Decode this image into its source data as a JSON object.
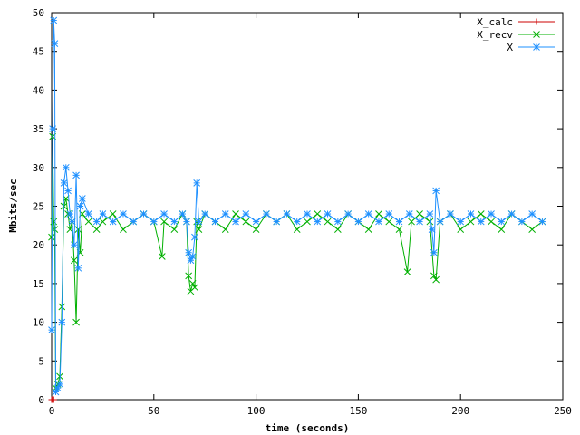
{
  "chart_data": {
    "type": "line",
    "xlabel": "time (seconds)",
    "ylabel": "Mbits/sec",
    "xlim": [
      0,
      250
    ],
    "ylim": [
      0,
      50
    ],
    "x_ticks": [
      "0",
      "50",
      "100",
      "150",
      "200",
      "250"
    ],
    "y_ticks": [
      "0",
      "5",
      "10",
      "15",
      "20",
      "25",
      "30",
      "35",
      "40",
      "45",
      "50"
    ],
    "grid": false,
    "legend_position": "top-right",
    "series": [
      {
        "name": "X_calc",
        "color": "#cc0000",
        "marker": "plus",
        "points": [
          [
            0,
            0
          ],
          [
            0.5,
            0
          ],
          [
            1,
            0
          ]
        ]
      },
      {
        "name": "X_recv",
        "color": "#00b000",
        "marker": "x",
        "points": [
          [
            0,
            21
          ],
          [
            0.5,
            34
          ],
          [
            1,
            23
          ],
          [
            1.5,
            22
          ],
          [
            2,
            1.5
          ],
          [
            3,
            2
          ],
          [
            4,
            3
          ],
          [
            5,
            12
          ],
          [
            6,
            25
          ],
          [
            7,
            26
          ],
          [
            8,
            24
          ],
          [
            9,
            22
          ],
          [
            10,
            23
          ],
          [
            11,
            18
          ],
          [
            12,
            10
          ],
          [
            13,
            22
          ],
          [
            14,
            19
          ],
          [
            15,
            24
          ],
          [
            18,
            23
          ],
          [
            22,
            22
          ],
          [
            25,
            23
          ],
          [
            30,
            24
          ],
          [
            35,
            22
          ],
          [
            40,
            23
          ],
          [
            45,
            24
          ],
          [
            50,
            23
          ],
          [
            54,
            18.5
          ],
          [
            55,
            23
          ],
          [
            60,
            22
          ],
          [
            64,
            24
          ],
          [
            66,
            23
          ],
          [
            67,
            16
          ],
          [
            68,
            14
          ],
          [
            69,
            15
          ],
          [
            70,
            14.5
          ],
          [
            71,
            23
          ],
          [
            72,
            22
          ],
          [
            75,
            24
          ],
          [
            80,
            23
          ],
          [
            85,
            22
          ],
          [
            90,
            24
          ],
          [
            95,
            23
          ],
          [
            100,
            22
          ],
          [
            105,
            24
          ],
          [
            110,
            23
          ],
          [
            115,
            24
          ],
          [
            120,
            22
          ],
          [
            125,
            23
          ],
          [
            130,
            24
          ],
          [
            135,
            23
          ],
          [
            140,
            22
          ],
          [
            145,
            24
          ],
          [
            150,
            23
          ],
          [
            155,
            22
          ],
          [
            160,
            24
          ],
          [
            165,
            23
          ],
          [
            170,
            22
          ],
          [
            174,
            16.5
          ],
          [
            176,
            23
          ],
          [
            180,
            24
          ],
          [
            185,
            23
          ],
          [
            187,
            16
          ],
          [
            188,
            15.5
          ],
          [
            190,
            23
          ],
          [
            195,
            24
          ],
          [
            200,
            22
          ],
          [
            205,
            23
          ],
          [
            210,
            24
          ],
          [
            215,
            23
          ],
          [
            220,
            22
          ],
          [
            225,
            24
          ],
          [
            230,
            23
          ],
          [
            235,
            22
          ],
          [
            240,
            23
          ]
        ]
      },
      {
        "name": "X",
        "color": "#1e90ff",
        "marker": "star",
        "points": [
          [
            0,
            9
          ],
          [
            0.5,
            35
          ],
          [
            1,
            49
          ],
          [
            1.5,
            46
          ],
          [
            2,
            1
          ],
          [
            3,
            1.5
          ],
          [
            4,
            2
          ],
          [
            5,
            10
          ],
          [
            6,
            28
          ],
          [
            7,
            30
          ],
          [
            8,
            27
          ],
          [
            9,
            24
          ],
          [
            10,
            23
          ],
          [
            11,
            20
          ],
          [
            12,
            29
          ],
          [
            13,
            17
          ],
          [
            14,
            25
          ],
          [
            15,
            26
          ],
          [
            18,
            24
          ],
          [
            22,
            23
          ],
          [
            25,
            24
          ],
          [
            30,
            23
          ],
          [
            35,
            24
          ],
          [
            40,
            23
          ],
          [
            45,
            24
          ],
          [
            50,
            23
          ],
          [
            55,
            24
          ],
          [
            60,
            23
          ],
          [
            64,
            24
          ],
          [
            66,
            23
          ],
          [
            67,
            19
          ],
          [
            68,
            18
          ],
          [
            69,
            18.5
          ],
          [
            70,
            21
          ],
          [
            71,
            28
          ],
          [
            72,
            23
          ],
          [
            75,
            24
          ],
          [
            80,
            23
          ],
          [
            85,
            24
          ],
          [
            90,
            23
          ],
          [
            95,
            24
          ],
          [
            100,
            23
          ],
          [
            105,
            24
          ],
          [
            110,
            23
          ],
          [
            115,
            24
          ],
          [
            120,
            23
          ],
          [
            125,
            24
          ],
          [
            130,
            23
          ],
          [
            135,
            24
          ],
          [
            140,
            23
          ],
          [
            145,
            24
          ],
          [
            150,
            23
          ],
          [
            155,
            24
          ],
          [
            160,
            23
          ],
          [
            165,
            24
          ],
          [
            170,
            23
          ],
          [
            175,
            24
          ],
          [
            180,
            23
          ],
          [
            185,
            24
          ],
          [
            186,
            22
          ],
          [
            187,
            19
          ],
          [
            188,
            27
          ],
          [
            190,
            23
          ],
          [
            195,
            24
          ],
          [
            200,
            23
          ],
          [
            205,
            24
          ],
          [
            210,
            23
          ],
          [
            215,
            24
          ],
          [
            220,
            23
          ],
          [
            225,
            24
          ],
          [
            230,
            23
          ],
          [
            235,
            24
          ],
          [
            240,
            23
          ]
        ]
      }
    ]
  }
}
